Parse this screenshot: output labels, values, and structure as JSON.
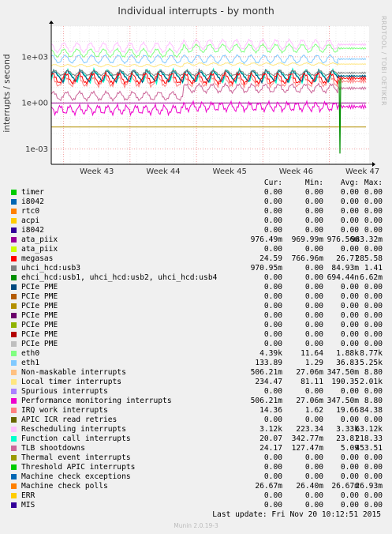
{
  "chart_data": {
    "type": "line",
    "title": "Individual interrupts - by month",
    "ylabel": "interrupts / second",
    "yscale": "log",
    "ylim": [
      0.0001,
      100000
    ],
    "y_ticks": [
      "1e+03",
      "1e+00",
      "1e-03"
    ],
    "x_ticks": [
      "Week 43",
      "Week 44",
      "Week 45",
      "Week 46",
      "Week 47"
    ],
    "grid": true,
    "columns": [
      "Cur:",
      "Min:",
      "Avg:",
      "Max:"
    ],
    "series": [
      {
        "name": "timer",
        "color": "#00cc00",
        "cur": "0.00",
        "min": "0.00",
        "avg": "0.00",
        "max": "0.00"
      },
      {
        "name": "i8042",
        "color": "#0066b3",
        "cur": "0.00",
        "min": "0.00",
        "avg": "0.00",
        "max": "0.00"
      },
      {
        "name": "rtc0",
        "color": "#ff8000",
        "cur": "0.00",
        "min": "0.00",
        "avg": "0.00",
        "max": "0.00"
      },
      {
        "name": "acpi",
        "color": "#ffcc00",
        "cur": "0.00",
        "min": "0.00",
        "avg": "0.00",
        "max": "0.00"
      },
      {
        "name": "i8042",
        "color": "#330099",
        "cur": "0.00",
        "min": "0.00",
        "avg": "0.00",
        "max": "0.00"
      },
      {
        "name": "ata_piix",
        "color": "#990099",
        "cur": "976.49m",
        "min": "969.99m",
        "avg": "976.56m",
        "max": "983.32m"
      },
      {
        "name": "ata_piix",
        "color": "#ccff00",
        "cur": "0.00",
        "min": "0.00",
        "avg": "0.00",
        "max": "0.00"
      },
      {
        "name": "megasas",
        "color": "#ff0000",
        "cur": "24.59",
        "min": "766.96m",
        "avg": "26.71",
        "max": "285.58"
      },
      {
        "name": "uhci_hcd:usb3",
        "color": "#808080",
        "cur": "970.95m",
        "min": "0.00",
        "avg": "84.93m",
        "max": "1.41"
      },
      {
        "name": "ehci_hcd:usb1, uhci_hcd:usb2, uhci_hcd:usb4",
        "color": "#008f00",
        "cur": "0.00",
        "min": "0.00",
        "avg": "694.44n",
        "max": "6.62m"
      },
      {
        "name": "PCIe PME",
        "color": "#00487d",
        "cur": "0.00",
        "min": "0.00",
        "avg": "0.00",
        "max": "0.00"
      },
      {
        "name": "PCIe PME",
        "color": "#b35a00",
        "cur": "0.00",
        "min": "0.00",
        "avg": "0.00",
        "max": "0.00"
      },
      {
        "name": "PCIe PME",
        "color": "#b38f00",
        "cur": "0.00",
        "min": "0.00",
        "avg": "0.00",
        "max": "0.00"
      },
      {
        "name": "PCIe PME",
        "color": "#6b006b",
        "cur": "0.00",
        "min": "0.00",
        "avg": "0.00",
        "max": "0.00"
      },
      {
        "name": "PCIe PME",
        "color": "#8fb300",
        "cur": "0.00",
        "min": "0.00",
        "avg": "0.00",
        "max": "0.00"
      },
      {
        "name": "PCIe PME",
        "color": "#b30000",
        "cur": "0.00",
        "min": "0.00",
        "avg": "0.00",
        "max": "0.00"
      },
      {
        "name": "PCIe PME",
        "color": "#bebebe",
        "cur": "0.00",
        "min": "0.00",
        "avg": "0.00",
        "max": "0.00"
      },
      {
        "name": "eth0",
        "color": "#80ff80",
        "cur": "4.39k",
        "min": "11.64",
        "avg": "1.88k",
        "max": "8.77k"
      },
      {
        "name": "eth1",
        "color": "#80c9ff",
        "cur": "133.89",
        "min": "1.29",
        "avg": "36.83",
        "max": "5.25k"
      },
      {
        "name": "Non-maskable interrupts",
        "color": "#ffc080",
        "cur": "506.21m",
        "min": "27.06m",
        "avg": "347.50m",
        "max": "8.80"
      },
      {
        "name": "Local timer interrupts",
        "color": "#ffe680",
        "cur": "234.47",
        "min": "81.11",
        "avg": "190.35",
        "max": "2.01k"
      },
      {
        "name": "Spurious interrupts",
        "color": "#aa80ff",
        "cur": "0.00",
        "min": "0.00",
        "avg": "0.00",
        "max": "0.00"
      },
      {
        "name": "Performance monitoring interrupts",
        "color": "#ee00cc",
        "cur": "506.21m",
        "min": "27.06m",
        "avg": "347.50m",
        "max": "8.80"
      },
      {
        "name": "IRQ work interrupts",
        "color": "#ff8080",
        "cur": "14.36",
        "min": "1.62",
        "avg": "19.66",
        "max": "84.38"
      },
      {
        "name": "APIC ICR read retries",
        "color": "#666600",
        "cur": "0.00",
        "min": "0.00",
        "avg": "0.00",
        "max": "0.00"
      },
      {
        "name": "Rescheduling interrupts",
        "color": "#ffbfff",
        "cur": "3.12k",
        "min": "223.34",
        "avg": "3.33k",
        "max": "63.12k"
      },
      {
        "name": "Function call interrupts",
        "color": "#00ffcc",
        "cur": "20.07",
        "min": "342.77m",
        "avg": "23.81",
        "max": "218.33"
      },
      {
        "name": "TLB shootdowns",
        "color": "#cc6699",
        "cur": "24.17",
        "min": "127.47m",
        "avg": "5.09",
        "max": "453.51"
      },
      {
        "name": "Thermal event interrupts",
        "color": "#999900",
        "cur": "0.00",
        "min": "0.00",
        "avg": "0.00",
        "max": "0.00"
      },
      {
        "name": "Threshold APIC interrupts",
        "color": "#00cc00",
        "cur": "0.00",
        "min": "0.00",
        "avg": "0.00",
        "max": "0.00"
      },
      {
        "name": "Machine check exceptions",
        "color": "#0066b3",
        "cur": "0.00",
        "min": "0.00",
        "avg": "0.00",
        "max": "0.00"
      },
      {
        "name": "Machine check polls",
        "color": "#ff8000",
        "cur": "26.67m",
        "min": "26.40m",
        "avg": "26.67m",
        "max": "26.93m"
      },
      {
        "name": "ERR",
        "color": "#ffcc00",
        "cur": "0.00",
        "min": "0.00",
        "avg": "0.00",
        "max": "0.00"
      },
      {
        "name": "MIS",
        "color": "#330099",
        "cur": "0.00",
        "min": "0.00",
        "avg": "0.00",
        "max": "0.00"
      }
    ]
  },
  "side_text": "RRDTOOL / TOBI OETIKER",
  "last_update": "Last update:  Fri Nov 20 10:12:51 2015",
  "footer": "Munin 2.0.19-3"
}
